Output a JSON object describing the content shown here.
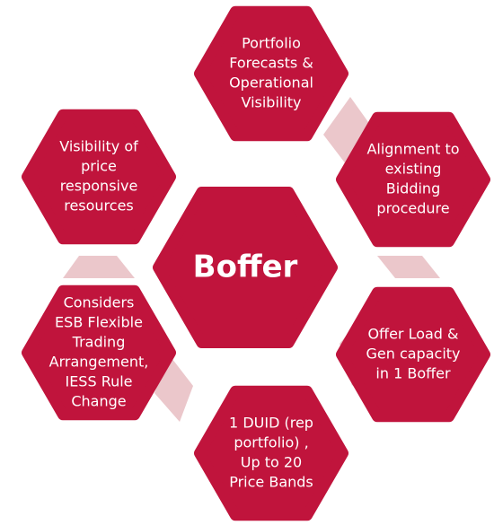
{
  "center": {
    "label": "Boffer"
  },
  "nodes": [
    {
      "lines": [
        "Portfolio",
        "Forecasts &",
        "Operational",
        "Visibility"
      ]
    },
    {
      "lines": [
        "Alignment to",
        "existing",
        "Bidding",
        "procedure"
      ]
    },
    {
      "lines": [
        "Offer Load &",
        "Gen capacity",
        "in 1 Boffer"
      ]
    },
    {
      "lines": [
        "1 DUID (rep",
        "portfolio) ,",
        "Up to 20",
        "Price Bands"
      ]
    },
    {
      "lines": [
        "Considers",
        "ESB Flexible",
        "Trading",
        "Arrangement,",
        "IESS Rule",
        "Change"
      ]
    },
    {
      "lines": [
        "Visibility of",
        "price",
        "responsive",
        "resources"
      ]
    }
  ]
}
